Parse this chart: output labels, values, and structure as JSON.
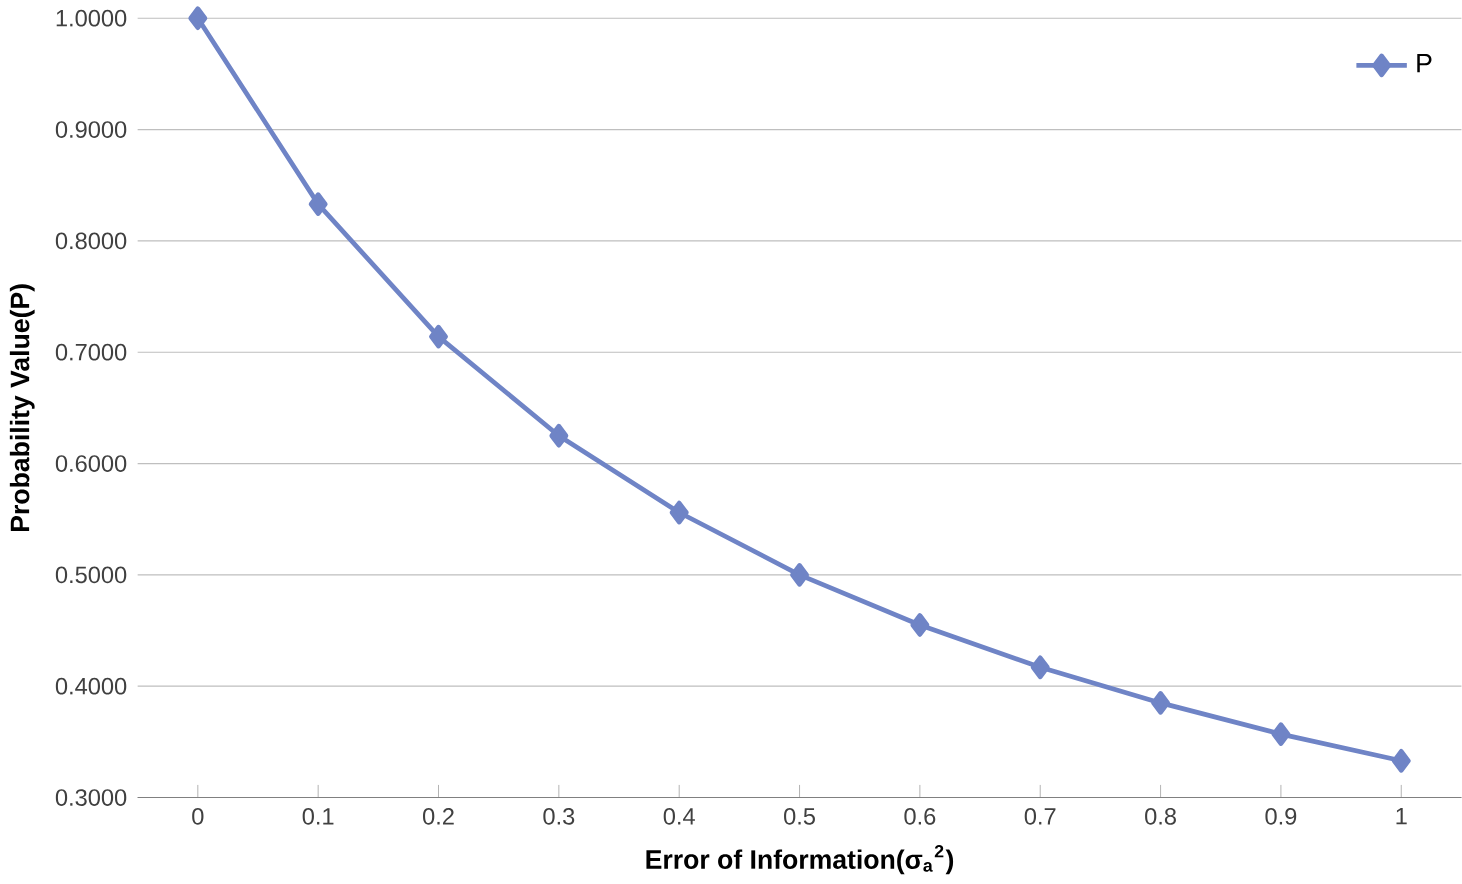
{
  "chart_data": {
    "type": "line",
    "xlabel": "Error of Information(σ$_{a}$$^{2}$)",
    "ylabel": "Probability Value(P)",
    "categories": [
      "0",
      "0.1",
      "0.2",
      "0.3",
      "0.4",
      "0.5",
      "0.6",
      "0.7",
      "0.8",
      "0.9",
      "1"
    ],
    "series": [
      {
        "name": "P",
        "color": "#6f84c6",
        "values": [
          1.0,
          0.833,
          0.714,
          0.625,
          0.556,
          0.5,
          0.455,
          0.417,
          0.385,
          0.357,
          0.333
        ]
      }
    ],
    "ylim": [
      0.3,
      1.0
    ],
    "yticks": [
      {
        "value": 0.3,
        "label": "0.3000"
      },
      {
        "value": 0.4,
        "label": "0.4000"
      },
      {
        "value": 0.5,
        "label": "0.5000"
      },
      {
        "value": 0.6,
        "label": "0.6000"
      },
      {
        "value": 0.7,
        "label": "0.7000"
      },
      {
        "value": 0.8,
        "label": "0.8000"
      },
      {
        "value": 0.9,
        "label": "0.9000"
      },
      {
        "value": 1.0,
        "label": "1.0000"
      }
    ],
    "grid": "y",
    "legend": "top right",
    "marker": "diamond",
    "line_style": "solid"
  }
}
